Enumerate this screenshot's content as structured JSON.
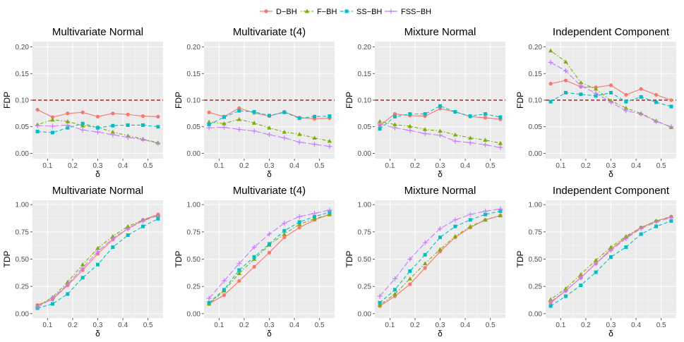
{
  "colors": {
    "panel_bg": "#ebebeb",
    "grid_major": "#ffffff",
    "grid_minor": "#f5f5f5",
    "reference_line": "#b22222"
  },
  "legend": [
    {
      "name": "D−BH",
      "color": "#f8766d",
      "marker": "circle",
      "dash": "solid"
    },
    {
      "name": "F−BH",
      "color": "#7cae00",
      "marker": "triangle",
      "dash": "dotdash"
    },
    {
      "name": "SS−BH",
      "color": "#00bfc4",
      "marker": "square",
      "dash": "dashed"
    },
    {
      "name": "FSS−BH",
      "color": "#c77cff",
      "marker": "plus",
      "dash": "longdash"
    }
  ],
  "chart_data": [
    {
      "type": "line",
      "title": "Multivariate Normal",
      "xlabel": "δ",
      "ylabel": "FDP",
      "x": [
        0.06,
        0.12,
        0.18,
        0.24,
        0.3,
        0.36,
        0.42,
        0.48,
        0.54
      ],
      "xlim": [
        0.04,
        0.56
      ],
      "ylim": [
        -0.01,
        0.21
      ],
      "xticks": [
        "0.1",
        "0.2",
        "0.3",
        "0.4",
        "0.5"
      ],
      "xtick_values": [
        0.1,
        0.2,
        0.3,
        0.4,
        0.5
      ],
      "yticks": [
        "0.00",
        "0.05",
        "0.10",
        "0.15",
        "0.20"
      ],
      "ytick_values": [
        0.0,
        0.05,
        0.1,
        0.15,
        0.2
      ],
      "hline": 0.1,
      "series": [
        {
          "name": "D−BH",
          "values": [
            0.082,
            0.068,
            0.075,
            0.077,
            0.069,
            0.075,
            0.073,
            0.07,
            0.069
          ]
        },
        {
          "name": "F−BH",
          "values": [
            0.054,
            0.063,
            0.06,
            0.052,
            0.049,
            0.04,
            0.033,
            0.027,
            0.02
          ]
        },
        {
          "name": "SS−BH",
          "values": [
            0.041,
            0.039,
            0.048,
            0.056,
            0.048,
            0.052,
            0.053,
            0.053,
            0.05
          ]
        },
        {
          "name": "FSS−BH",
          "values": [
            0.052,
            0.051,
            0.053,
            0.044,
            0.04,
            0.035,
            0.03,
            0.026,
            0.019
          ]
        }
      ]
    },
    {
      "type": "line",
      "title": "Multivariate t(4)",
      "xlabel": "δ",
      "ylabel": "FDP",
      "x": [
        0.06,
        0.12,
        0.18,
        0.24,
        0.3,
        0.36,
        0.42,
        0.48,
        0.54
      ],
      "xlim": [
        0.04,
        0.56
      ],
      "ylim": [
        -0.01,
        0.21
      ],
      "xticks": [
        "0.1",
        "0.2",
        "0.3",
        "0.4",
        "0.5"
      ],
      "xtick_values": [
        0.1,
        0.2,
        0.3,
        0.4,
        0.5
      ],
      "yticks": [
        "0.00",
        "0.05",
        "0.10",
        "0.15",
        "0.20"
      ],
      "ytick_values": [
        0.0,
        0.05,
        0.1,
        0.15,
        0.2
      ],
      "hline": 0.1,
      "series": [
        {
          "name": "D−BH",
          "values": [
            0.077,
            0.069,
            0.085,
            0.076,
            0.07,
            0.078,
            0.067,
            0.065,
            0.066
          ]
        },
        {
          "name": "F−BH",
          "values": [
            0.059,
            0.056,
            0.064,
            0.057,
            0.048,
            0.04,
            0.036,
            0.029,
            0.023
          ]
        },
        {
          "name": "SS−BH",
          "values": [
            0.054,
            0.068,
            0.08,
            0.078,
            0.071,
            0.077,
            0.066,
            0.069,
            0.07
          ]
        },
        {
          "name": "FSS−BH",
          "values": [
            0.048,
            0.049,
            0.045,
            0.042,
            0.035,
            0.029,
            0.021,
            0.017,
            0.013
          ]
        }
      ]
    },
    {
      "type": "line",
      "title": "Mixture Normal",
      "xlabel": "δ",
      "ylabel": "FDP",
      "x": [
        0.06,
        0.12,
        0.18,
        0.24,
        0.3,
        0.36,
        0.42,
        0.48,
        0.54
      ],
      "xlim": [
        0.04,
        0.56
      ],
      "ylim": [
        -0.01,
        0.21
      ],
      "xticks": [
        "0.1",
        "0.2",
        "0.3",
        "0.4",
        "0.5"
      ],
      "xtick_values": [
        0.1,
        0.2,
        0.3,
        0.4,
        0.5
      ],
      "yticks": [
        "0.00",
        "0.05",
        "0.10",
        "0.15",
        "0.20"
      ],
      "ytick_values": [
        0.0,
        0.05,
        0.1,
        0.15,
        0.2
      ],
      "hline": 0.1,
      "series": [
        {
          "name": "D−BH",
          "values": [
            0.052,
            0.074,
            0.071,
            0.07,
            0.084,
            0.078,
            0.069,
            0.067,
            0.064
          ]
        },
        {
          "name": "F−BH",
          "values": [
            0.06,
            0.054,
            0.051,
            0.045,
            0.042,
            0.035,
            0.029,
            0.025,
            0.019
          ]
        },
        {
          "name": "SS−BH",
          "values": [
            0.046,
            0.069,
            0.074,
            0.074,
            0.089,
            0.078,
            0.07,
            0.074,
            0.068
          ]
        },
        {
          "name": "FSS−BH",
          "values": [
            0.055,
            0.048,
            0.043,
            0.037,
            0.034,
            0.023,
            0.02,
            0.016,
            0.011
          ]
        }
      ]
    },
    {
      "type": "line",
      "title": "Independent Component",
      "xlabel": "δ",
      "ylabel": "FDP",
      "x": [
        0.06,
        0.12,
        0.18,
        0.24,
        0.3,
        0.36,
        0.42,
        0.48,
        0.54
      ],
      "xlim": [
        0.04,
        0.56
      ],
      "ylim": [
        -0.01,
        0.21
      ],
      "xticks": [
        "0.1",
        "0.2",
        "0.3",
        "0.4",
        "0.5"
      ],
      "xtick_values": [
        0.1,
        0.2,
        0.3,
        0.4,
        0.5
      ],
      "yticks": [
        "0.00",
        "0.05",
        "0.10",
        "0.15",
        "0.20"
      ],
      "ytick_values": [
        0.0,
        0.05,
        0.1,
        0.15,
        0.2
      ],
      "hline": 0.1,
      "series": [
        {
          "name": "D−BH",
          "values": [
            0.131,
            0.137,
            0.125,
            0.124,
            0.128,
            0.11,
            0.121,
            0.11,
            0.1
          ]
        },
        {
          "name": "F−BH",
          "values": [
            0.193,
            0.172,
            0.133,
            0.121,
            0.099,
            0.085,
            0.075,
            0.061,
            0.049
          ]
        },
        {
          "name": "SS−BH",
          "values": [
            0.097,
            0.114,
            0.111,
            0.108,
            0.114,
            0.097,
            0.106,
            0.096,
            0.088
          ]
        },
        {
          "name": "FSS−BH",
          "values": [
            0.171,
            0.155,
            0.127,
            0.113,
            0.096,
            0.08,
            0.074,
            0.06,
            0.05
          ]
        }
      ]
    },
    {
      "type": "line",
      "title": "Multivariate Normal",
      "xlabel": "δ",
      "ylabel": "TDP",
      "x": [
        0.06,
        0.12,
        0.18,
        0.24,
        0.3,
        0.36,
        0.42,
        0.48,
        0.54
      ],
      "xlim": [
        0.04,
        0.56
      ],
      "ylim": [
        -0.04,
        1.04
      ],
      "xticks": [
        "0.1",
        "0.2",
        "0.3",
        "0.4",
        "0.5"
      ],
      "xtick_values": [
        0.1,
        0.2,
        0.3,
        0.4,
        0.5
      ],
      "yticks": [
        "0.00",
        "0.25",
        "0.50",
        "0.75",
        "1.00"
      ],
      "ytick_values": [
        0.0,
        0.25,
        0.5,
        0.75,
        1.0
      ],
      "series": [
        {
          "name": "D−BH",
          "values": [
            0.08,
            0.13,
            0.26,
            0.4,
            0.55,
            0.68,
            0.78,
            0.86,
            0.91
          ]
        },
        {
          "name": "F−BH",
          "values": [
            0.07,
            0.15,
            0.29,
            0.45,
            0.6,
            0.71,
            0.8,
            0.86,
            0.9
          ]
        },
        {
          "name": "SS−BH",
          "values": [
            0.05,
            0.09,
            0.18,
            0.33,
            0.45,
            0.61,
            0.72,
            0.8,
            0.87
          ]
        },
        {
          "name": "FSS−BH",
          "values": [
            0.06,
            0.14,
            0.27,
            0.42,
            0.57,
            0.69,
            0.78,
            0.85,
            0.9
          ]
        }
      ]
    },
    {
      "type": "line",
      "title": "Multivariate t(4)",
      "xlabel": "δ",
      "ylabel": "TDP",
      "x": [
        0.06,
        0.12,
        0.18,
        0.24,
        0.3,
        0.36,
        0.42,
        0.48,
        0.54
      ],
      "xlim": [
        0.04,
        0.56
      ],
      "ylim": [
        -0.04,
        1.04
      ],
      "xticks": [
        "0.1",
        "0.2",
        "0.3",
        "0.4",
        "0.5"
      ],
      "xtick_values": [
        0.1,
        0.2,
        0.3,
        0.4,
        0.5
      ],
      "yticks": [
        "0.00",
        "0.25",
        "0.50",
        "0.75",
        "1.00"
      ],
      "ytick_values": [
        0.0,
        0.25,
        0.5,
        0.75,
        1.0
      ],
      "series": [
        {
          "name": "D−BH",
          "values": [
            0.09,
            0.17,
            0.3,
            0.43,
            0.56,
            0.7,
            0.79,
            0.86,
            0.91
          ]
        },
        {
          "name": "F−BH",
          "values": [
            0.09,
            0.21,
            0.37,
            0.5,
            0.63,
            0.73,
            0.82,
            0.87,
            0.91
          ]
        },
        {
          "name": "SS−BH",
          "values": [
            0.1,
            0.22,
            0.4,
            0.52,
            0.64,
            0.76,
            0.84,
            0.89,
            0.93
          ]
        },
        {
          "name": "FSS−BH",
          "values": [
            0.14,
            0.3,
            0.46,
            0.61,
            0.73,
            0.83,
            0.89,
            0.92,
            0.95
          ]
        }
      ]
    },
    {
      "type": "line",
      "title": "Mixture Normal",
      "xlabel": "δ",
      "ylabel": "TDP",
      "x": [
        0.06,
        0.12,
        0.18,
        0.24,
        0.3,
        0.36,
        0.42,
        0.48,
        0.54
      ],
      "xlim": [
        0.04,
        0.56
      ],
      "ylim": [
        -0.04,
        1.04
      ],
      "xticks": [
        "0.1",
        "0.2",
        "0.3",
        "0.4",
        "0.5"
      ],
      "xtick_values": [
        0.1,
        0.2,
        0.3,
        0.4,
        0.5
      ],
      "yticks": [
        "0.00",
        "0.25",
        "0.50",
        "0.75",
        "1.00"
      ],
      "ytick_values": [
        0.0,
        0.25,
        0.5,
        0.75,
        1.0
      ],
      "series": [
        {
          "name": "D−BH",
          "values": [
            0.07,
            0.16,
            0.27,
            0.42,
            0.57,
            0.7,
            0.79,
            0.86,
            0.9
          ]
        },
        {
          "name": "F−BH",
          "values": [
            0.08,
            0.18,
            0.32,
            0.46,
            0.59,
            0.71,
            0.8,
            0.86,
            0.9
          ]
        },
        {
          "name": "SS−BH",
          "values": [
            0.1,
            0.22,
            0.39,
            0.54,
            0.7,
            0.8,
            0.86,
            0.91,
            0.94
          ]
        },
        {
          "name": "FSS−BH",
          "values": [
            0.16,
            0.32,
            0.5,
            0.65,
            0.78,
            0.86,
            0.91,
            0.94,
            0.96
          ]
        }
      ]
    },
    {
      "type": "line",
      "title": "Independent Component",
      "xlabel": "δ",
      "ylabel": "TDP",
      "x": [
        0.06,
        0.12,
        0.18,
        0.24,
        0.3,
        0.36,
        0.42,
        0.48,
        0.54
      ],
      "xlim": [
        0.04,
        0.56
      ],
      "ylim": [
        -0.04,
        1.04
      ],
      "xticks": [
        "0.1",
        "0.2",
        "0.3",
        "0.4",
        "0.5"
      ],
      "xtick_values": [
        0.1,
        0.2,
        0.3,
        0.4,
        0.5
      ],
      "yticks": [
        "0.00",
        "0.25",
        "0.50",
        "0.75",
        "1.00"
      ],
      "ytick_values": [
        0.0,
        0.25,
        0.5,
        0.75,
        1.0
      ],
      "series": [
        {
          "name": "D−BH",
          "values": [
            0.1,
            0.21,
            0.33,
            0.46,
            0.59,
            0.7,
            0.79,
            0.85,
            0.89
          ]
        },
        {
          "name": "F−BH",
          "values": [
            0.13,
            0.23,
            0.36,
            0.49,
            0.61,
            0.71,
            0.79,
            0.85,
            0.89
          ]
        },
        {
          "name": "SS−BH",
          "values": [
            0.07,
            0.16,
            0.26,
            0.38,
            0.52,
            0.61,
            0.73,
            0.8,
            0.85
          ]
        },
        {
          "name": "FSS−BH",
          "values": [
            0.11,
            0.21,
            0.33,
            0.46,
            0.58,
            0.69,
            0.78,
            0.84,
            0.88
          ]
        }
      ]
    }
  ]
}
